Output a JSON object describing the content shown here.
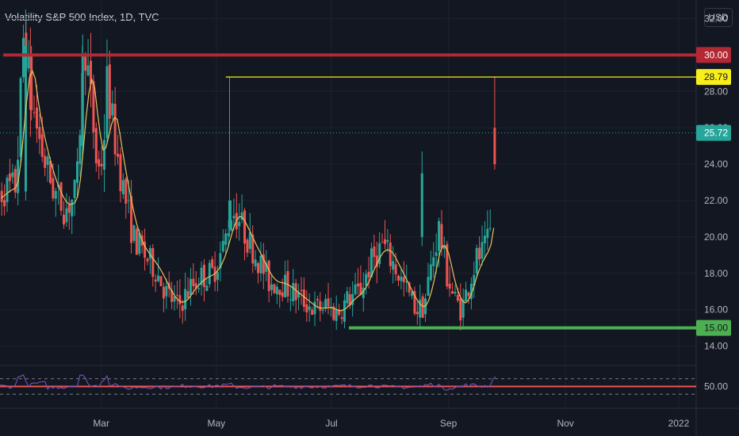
{
  "header": {
    "title": "Volatility S&P 500 Index, 1D, TVC",
    "currency": "USD"
  },
  "price_axis": {
    "ticks": [
      "32.00",
      "30.00",
      "28.00",
      "26.00",
      "24.00",
      "22.00",
      "20.00",
      "18.00",
      "16.00",
      "14.00"
    ],
    "tick_values": [
      32,
      30,
      28,
      26,
      24,
      22,
      20,
      18,
      16,
      14
    ]
  },
  "time_axis": {
    "ticks": [
      "Mar",
      "May",
      "Jul",
      "Sep",
      "Nov",
      "2022"
    ],
    "tick_days": [
      57,
      118,
      179,
      241,
      303,
      363
    ]
  },
  "price_tags": [
    {
      "value": 30.0,
      "label": "30.00",
      "bg": "#b22833",
      "fg": "#ffffff"
    },
    {
      "value": 28.79,
      "label": "28.79",
      "bg": "#f8ee1b",
      "fg": "#131722"
    },
    {
      "value": 25.72,
      "label": "25.72",
      "bg": "#26a69a",
      "fg": "#ffffff"
    },
    {
      "value": 15.0,
      "label": "15.00",
      "bg": "#4caf50",
      "fg": "#131722"
    }
  ],
  "horizontal_lines": [
    {
      "value": 30.0,
      "color": "#b22833",
      "start_day": 0
    },
    {
      "value": 28.79,
      "color": "#f8ee1b",
      "start_day": 123
    },
    {
      "value": 15.0,
      "color": "#4caf50",
      "start_day": 190
    }
  ],
  "last_price": 25.72,
  "rsi_panel": {
    "tick": "50.00",
    "level": 50,
    "band_high": 70,
    "band_low": 30
  },
  "colors": {
    "up": "#26a69a",
    "down": "#ef5350",
    "ma": "#e5c35c",
    "rsi": "#7e57c2",
    "background": "#131722"
  },
  "chart_data": {
    "type": "candlestick",
    "title": "Volatility S&P 500 Index, 1D, TVC",
    "ylim": [
      13.2,
      32.5
    ],
    "x_range_days": [
      0,
      365
    ],
    "ohlc_anchors": [
      [
        0,
        22.0
      ],
      [
        6,
        22.6
      ],
      [
        12,
        22.8
      ],
      [
        16,
        31.5
      ],
      [
        20,
        27.5
      ],
      [
        26,
        24.5
      ],
      [
        32,
        22.5
      ],
      [
        38,
        21.5
      ],
      [
        44,
        22.5
      ],
      [
        48,
        31.0
      ],
      [
        52,
        27.0
      ],
      [
        55,
        23.5
      ],
      [
        58,
        24.5
      ],
      [
        60,
        28.5
      ],
      [
        64,
        25.5
      ],
      [
        68,
        23.0
      ],
      [
        74,
        20.0
      ],
      [
        80,
        19.0
      ],
      [
        86,
        18.2
      ],
      [
        92,
        16.8
      ],
      [
        98,
        16.2
      ],
      [
        104,
        17.2
      ],
      [
        110,
        17.8
      ],
      [
        116,
        18.0
      ],
      [
        122,
        19.5
      ],
      [
        126,
        21.5
      ],
      [
        130,
        21.0
      ],
      [
        134,
        20.0
      ],
      [
        140,
        18.8
      ],
      [
        146,
        17.5
      ],
      [
        152,
        17.5
      ],
      [
        158,
        17.0
      ],
      [
        164,
        16.5
      ],
      [
        170,
        16.0
      ],
      [
        176,
        16.2
      ],
      [
        182,
        15.8
      ],
      [
        188,
        16.6
      ],
      [
        194,
        17.0
      ],
      [
        200,
        18.6
      ],
      [
        206,
        19.6
      ],
      [
        212,
        18.5
      ],
      [
        216,
        17.6
      ],
      [
        220,
        16.8
      ],
      [
        224,
        16.0
      ],
      [
        228,
        16.2
      ],
      [
        232,
        18.5
      ],
      [
        236,
        20.5
      ],
      [
        240,
        18.0
      ],
      [
        244,
        16.6
      ],
      [
        248,
        16.0
      ],
      [
        252,
        17.5
      ],
      [
        256,
        18.8
      ],
      [
        260,
        19.2
      ],
      [
        263,
        20.0
      ],
      [
        266,
        26.0
      ]
    ],
    "moving_average_color": "#e5c35c",
    "last_value": 25.72,
    "annotations": [
      "30.00",
      "28.79",
      "15.00"
    ]
  }
}
